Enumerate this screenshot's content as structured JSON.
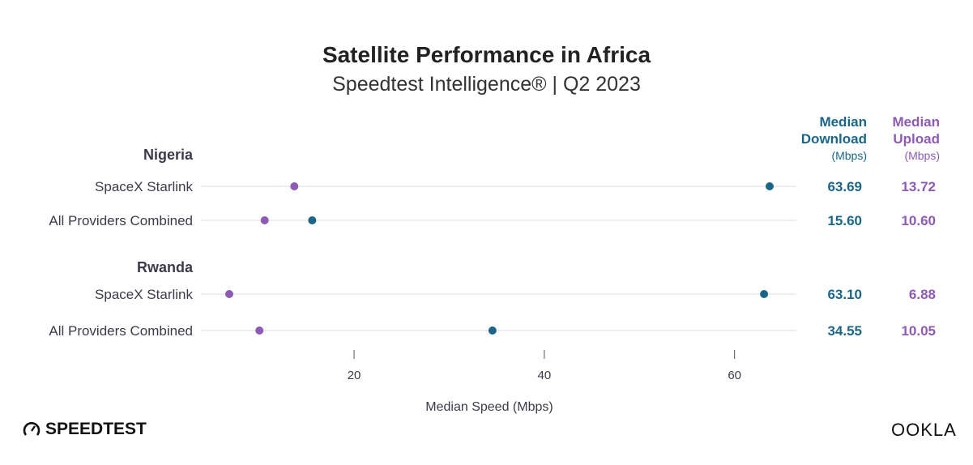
{
  "title": "Satellite Performance in Africa",
  "subtitle": "Speedtest Intelligence® | Q2 2023",
  "columns": {
    "download": {
      "line1": "Median",
      "line2": "Download",
      "unit": "(Mbps)"
    },
    "upload": {
      "line1": "Median",
      "line2": "Upload",
      "unit": "(Mbps)"
    }
  },
  "colors": {
    "download": "#1b6688",
    "upload": "#8d5bb5",
    "text": "#3b3b4b",
    "grid": "#e8e8ec"
  },
  "logos": {
    "left": "SPEEDTEST",
    "right": "OOKLA"
  },
  "chart_data": {
    "type": "dot",
    "xlabel": "Median Speed (Mbps)",
    "xlim": [
      3.9,
      66.5
    ],
    "xticks": [
      20,
      40,
      60
    ],
    "groups": [
      {
        "name": "Nigeria",
        "rows": [
          {
            "label": "SpaceX Starlink",
            "download": 63.69,
            "upload": 13.72,
            "download_text": "63.69",
            "upload_text": "13.72"
          },
          {
            "label": "All Providers Combined",
            "download": 15.6,
            "upload": 10.6,
            "download_text": "15.60",
            "upload_text": "10.60"
          }
        ]
      },
      {
        "name": "Rwanda",
        "rows": [
          {
            "label": "SpaceX Starlink",
            "download": 63.1,
            "upload": 6.88,
            "download_text": "63.10",
            "upload_text": "6.88"
          },
          {
            "label": "All Providers Combined",
            "download": 34.55,
            "upload": 10.05,
            "download_text": "34.55",
            "upload_text": "10.05"
          }
        ]
      }
    ]
  }
}
